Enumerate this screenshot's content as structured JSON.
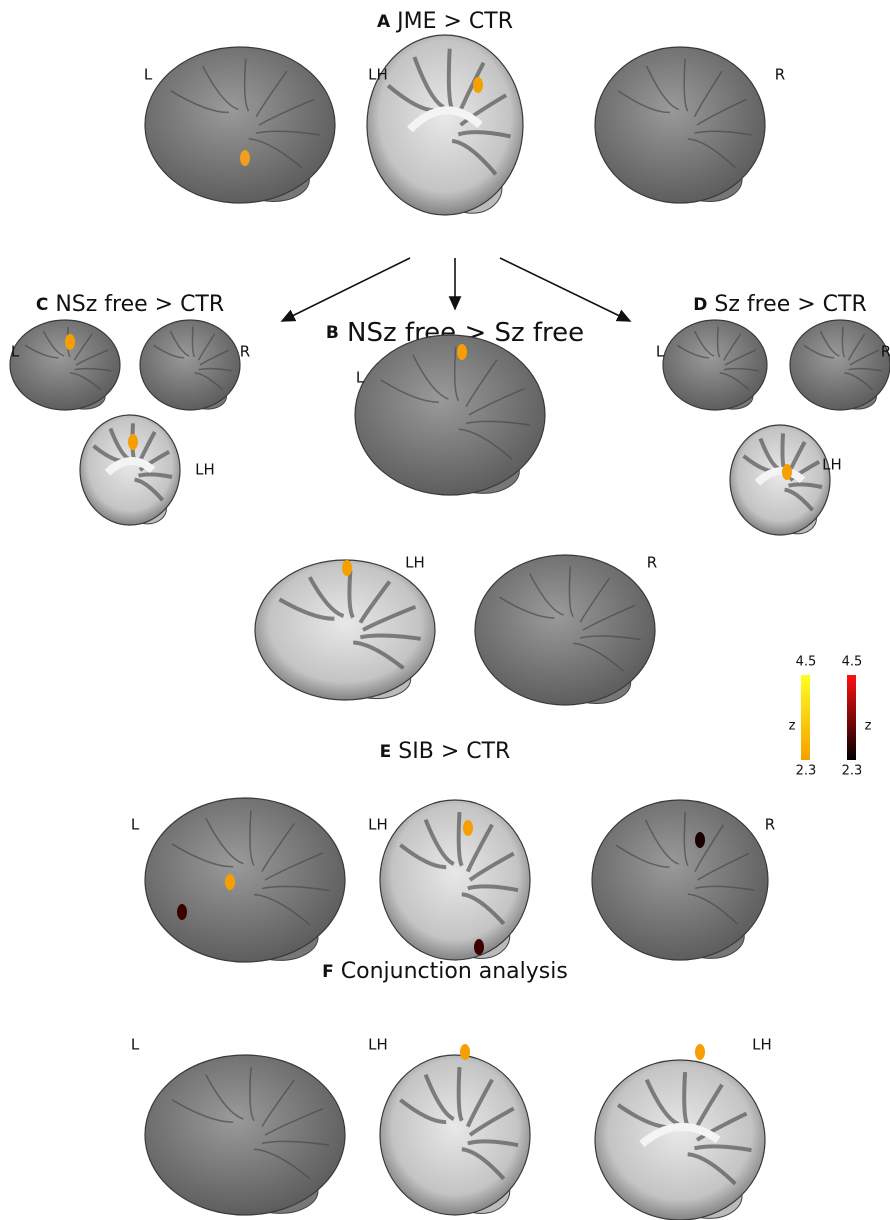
{
  "panels": [
    {
      "letter": "A",
      "title": "JME > CTR",
      "views": [
        "L",
        "LH",
        "R"
      ]
    },
    {
      "letter": "B",
      "title": "NSz free > Sz free",
      "views": [
        "L",
        "LH",
        "R"
      ]
    },
    {
      "letter": "C",
      "title": "NSz free > CTR",
      "views": [
        "L",
        "R",
        "LH"
      ]
    },
    {
      "letter": "D",
      "title": "Sz free > CTR",
      "views": [
        "L",
        "R",
        "LH"
      ]
    },
    {
      "letter": "E",
      "title": "SIB > CTR",
      "views": [
        "L",
        "LH",
        "R"
      ]
    },
    {
      "letter": "F",
      "title": "Conjunction analysis",
      "views": [
        "L",
        "LH",
        "LH"
      ]
    }
  ],
  "colorbars": [
    {
      "max": "4.5",
      "label": "z",
      "min": "2.3"
    },
    {
      "max": "4.5",
      "label": "z",
      "min": "2.3"
    }
  ]
}
